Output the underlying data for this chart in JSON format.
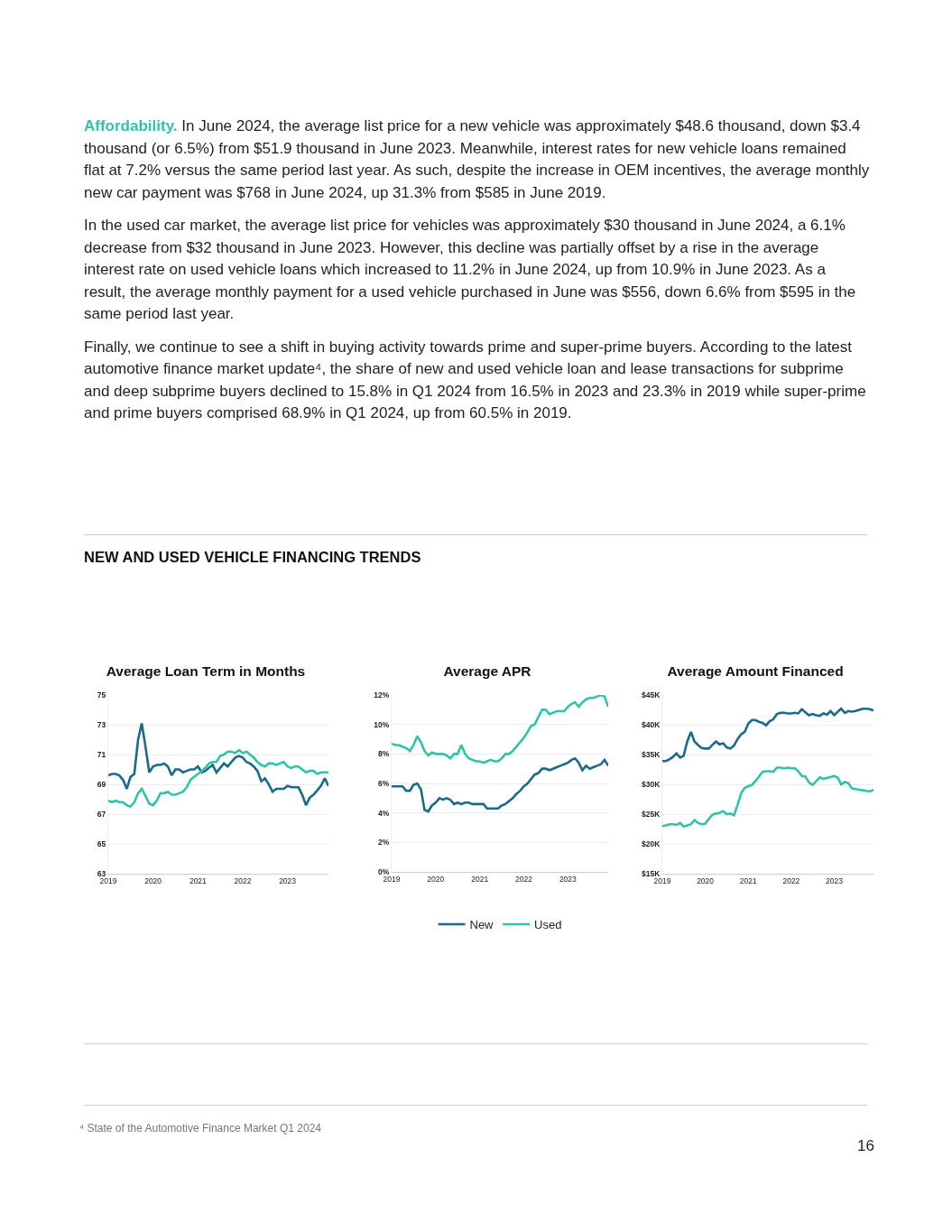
{
  "chart_data": [
    {
      "type": "other",
      "title": "NEW AND USED VEHICLE FINANCING TRENDS",
      "annotations": [
        "Affordability.",
        "In June 2024, the average list price for a new vehicle was approximately $48.6 thousand, down $3.4 thousand (or 6.5%) from $51.9 thousand in June 2023. Meanwhile, interest rates for new vehicle loans remained flat at 7.2% versus the same period last year. As such, despite the increase in OEM incentives, the average monthly new car payment was $768 in June 2024, up 31.3% from $585 in June 2019.",
        "In the used car market, the average list price for vehicles was approximately $30 thousand in June 2024, a 6.1% decrease from $32 thousand in June 2023. However, this decline was partially offset by a rise in the average interest rate on used vehicle loans which increased to 11.2% in June 2024, up from 10.9% in June 2023. As a result, the average monthly payment for a used vehicle purchased in June was $556, down 6.6% from $595 in the same period last year.",
        "Finally, we continue to see a shift in buying activity towards prime and super-prime buyers. According to the latest automotive finance market update⁴, the share of new and used vehicle loan and lease transactions for subprime and deep subprime buyers declined to 15.8% in Q1 2024 from 16.5% in 2023 and 23.3% in 2019 while super-prime and prime buyers comprised 68.9% in Q1 2024, up from 60.5% in 2019."
      ]
    },
    {
      "type": "line",
      "title": "Average Loan Term in Months",
      "grid": "y",
      "x": [
        "2019-01",
        "2019-02",
        "2019-03",
        "2019-04",
        "2019-05",
        "2019-06",
        "2019-07",
        "2019-08",
        "2019-09",
        "2019-10",
        "2019-11",
        "2019-12",
        "2020-01",
        "2020-02",
        "2020-03",
        "2020-04",
        "2020-05",
        "2020-06",
        "2020-07",
        "2020-08",
        "2020-09",
        "2020-10",
        "2020-11",
        "2020-12",
        "2021-01",
        "2021-02",
        "2021-03",
        "2021-04",
        "2021-05",
        "2021-06",
        "2021-07",
        "2021-08",
        "2021-09",
        "2021-10",
        "2021-11",
        "2021-12",
        "2022-01",
        "2022-02",
        "2022-03",
        "2022-04",
        "2022-05",
        "2022-06",
        "2022-07",
        "2022-08",
        "2022-09",
        "2022-10",
        "2022-11",
        "2022-12",
        "2023-01",
        "2023-02",
        "2023-03",
        "2023-04",
        "2023-05",
        "2023-06",
        "2023-07",
        "2023-08",
        "2023-09",
        "2023-10",
        "2023-11",
        "2023-12"
      ],
      "xlim": [
        "2019-01",
        "2023-12"
      ],
      "xticks": [
        "2019",
        "2020",
        "2021",
        "2022",
        "2023"
      ],
      "ylim": [
        63,
        75
      ],
      "yticks": [
        63,
        65,
        67,
        69,
        71,
        73,
        75
      ],
      "series": [
        {
          "color": "#1b6a8a",
          "values": [
            69.6,
            69.7,
            69.7,
            69.6,
            69.3,
            68.7,
            69.5,
            69.7,
            72.0,
            73.1,
            71.5,
            69.8,
            70.2,
            70.3,
            70.3,
            70.4,
            70.2,
            69.6,
            70.0,
            70.0,
            69.8,
            69.9,
            70.0,
            70.0,
            70.2,
            69.8,
            69.9,
            70.1,
            70.3,
            69.8,
            70.1,
            70.4,
            70.2,
            70.5,
            70.8,
            70.9,
            70.8,
            70.5,
            70.4,
            70.2,
            69.9,
            69.2,
            69.4,
            69.0,
            68.5,
            68.7,
            68.7,
            68.7,
            68.9,
            68.8,
            68.8,
            68.8,
            68.3,
            67.6,
            68.1,
            68.3,
            68.6,
            68.9,
            69.4,
            68.9
          ]
        },
        {
          "color": "#2ec4a6",
          "values": [
            67.9,
            67.8,
            67.9,
            67.8,
            67.8,
            67.6,
            67.5,
            67.8,
            68.4,
            68.7,
            68.2,
            67.7,
            67.6,
            67.9,
            68.4,
            68.4,
            68.5,
            68.3,
            68.3,
            68.4,
            68.5,
            68.8,
            69.3,
            69.5,
            69.7,
            69.9,
            70.1,
            70.4,
            70.5,
            70.5,
            70.9,
            71.0,
            71.2,
            71.2,
            71.1,
            71.3,
            71.1,
            71.2,
            71.0,
            70.8,
            70.5,
            70.3,
            70.2,
            70.4,
            70.4,
            70.3,
            70.4,
            70.5,
            70.2,
            70.1,
            70.2,
            70.2,
            70.0,
            69.8,
            69.9,
            69.9,
            69.7,
            69.8,
            69.8,
            69.8
          ]
        }
      ]
    },
    {
      "type": "line",
      "title": "Average APR",
      "grid": "y",
      "legend": "bottom",
      "x": [
        "2019-01",
        "2019-02",
        "2019-03",
        "2019-04",
        "2019-05",
        "2019-06",
        "2019-07",
        "2019-08",
        "2019-09",
        "2019-10",
        "2019-11",
        "2019-12",
        "2020-01",
        "2020-02",
        "2020-03",
        "2020-04",
        "2020-05",
        "2020-06",
        "2020-07",
        "2020-08",
        "2020-09",
        "2020-10",
        "2020-11",
        "2020-12",
        "2021-01",
        "2021-02",
        "2021-03",
        "2021-04",
        "2021-05",
        "2021-06",
        "2021-07",
        "2021-08",
        "2021-09",
        "2021-10",
        "2021-11",
        "2021-12",
        "2022-01",
        "2022-02",
        "2022-03",
        "2022-04",
        "2022-05",
        "2022-06",
        "2022-07",
        "2022-08",
        "2022-09",
        "2022-10",
        "2022-11",
        "2022-12",
        "2023-01",
        "2023-02",
        "2023-03",
        "2023-04",
        "2023-05",
        "2023-06",
        "2023-07",
        "2023-08",
        "2023-09",
        "2023-10",
        "2023-11",
        "2023-12"
      ],
      "xlim": [
        "2019-01",
        "2023-12"
      ],
      "xticks": [
        "2019",
        "2020",
        "2021",
        "2022",
        "2023"
      ],
      "ylim": [
        0,
        12
      ],
      "yticks": [
        {
          "value": 0,
          "label": "0%"
        },
        {
          "value": 2,
          "label": "2%"
        },
        {
          "value": 4,
          "label": "4%"
        },
        {
          "value": 6,
          "label": "6%"
        },
        {
          "value": 8,
          "label": "8%"
        },
        {
          "value": 10,
          "label": "10%"
        },
        {
          "value": 12,
          "label": "12%"
        }
      ],
      "series": [
        {
          "name": "New",
          "color": "#1b6a8a",
          "values": [
            5.8,
            5.8,
            5.8,
            5.8,
            5.5,
            5.5,
            5.9,
            6.0,
            5.6,
            4.2,
            4.1,
            4.5,
            4.7,
            5.0,
            4.9,
            5.0,
            4.9,
            4.6,
            4.7,
            4.6,
            4.7,
            4.7,
            4.6,
            4.6,
            4.6,
            4.6,
            4.3,
            4.3,
            4.3,
            4.3,
            4.5,
            4.6,
            4.8,
            5.0,
            5.3,
            5.5,
            5.8,
            6.0,
            6.3,
            6.6,
            6.7,
            7.0,
            7.0,
            6.9,
            7.0,
            7.1,
            7.2,
            7.3,
            7.4,
            7.6,
            7.7,
            7.4,
            6.9,
            7.2,
            7.0,
            7.1,
            7.2,
            7.3,
            7.6,
            7.2
          ]
        },
        {
          "name": "Used",
          "color": "#2ec4a6",
          "values": [
            8.7,
            8.6,
            8.6,
            8.5,
            8.4,
            8.2,
            8.6,
            9.2,
            8.8,
            8.2,
            7.9,
            8.1,
            8.0,
            8.0,
            8.0,
            7.9,
            7.7,
            8.0,
            8.0,
            8.6,
            8.0,
            7.7,
            7.6,
            7.5,
            7.5,
            7.4,
            7.5,
            7.6,
            7.5,
            7.5,
            7.7,
            8.0,
            8.0,
            8.2,
            8.5,
            8.8,
            9.1,
            9.5,
            9.9,
            10.0,
            10.5,
            11.0,
            11.0,
            10.7,
            10.8,
            10.9,
            10.9,
            10.9,
            11.2,
            11.4,
            11.5,
            11.2,
            11.5,
            11.7,
            11.8,
            11.8,
            11.9,
            12.0,
            11.9,
            11.2
          ]
        }
      ]
    },
    {
      "type": "line",
      "title": "Average Amount Financed",
      "grid": "y",
      "x": [
        "2019-01",
        "2019-02",
        "2019-03",
        "2019-04",
        "2019-05",
        "2019-06",
        "2019-07",
        "2019-08",
        "2019-09",
        "2019-10",
        "2019-11",
        "2019-12",
        "2020-01",
        "2020-02",
        "2020-03",
        "2020-04",
        "2020-05",
        "2020-06",
        "2020-07",
        "2020-08",
        "2020-09",
        "2020-10",
        "2020-11",
        "2020-12",
        "2021-01",
        "2021-02",
        "2021-03",
        "2021-04",
        "2021-05",
        "2021-06",
        "2021-07",
        "2021-08",
        "2021-09",
        "2021-10",
        "2021-11",
        "2021-12",
        "2022-01",
        "2022-02",
        "2022-03",
        "2022-04",
        "2022-05",
        "2022-06",
        "2022-07",
        "2022-08",
        "2022-09",
        "2022-10",
        "2022-11",
        "2022-12",
        "2023-01",
        "2023-02",
        "2023-03",
        "2023-04",
        "2023-05",
        "2023-06",
        "2023-07",
        "2023-08",
        "2023-09",
        "2023-10",
        "2023-11",
        "2023-12"
      ],
      "xlim": [
        "2019-01",
        "2023-12"
      ],
      "xticks": [
        "2019",
        "2020",
        "2021",
        "2022",
        "2023"
      ],
      "ylim": [
        15000,
        45000
      ],
      "yticks": [
        {
          "value": 15000,
          "label": "$15K"
        },
        {
          "value": 20000,
          "label": "$20K"
        },
        {
          "value": 25000,
          "label": "$25K"
        },
        {
          "value": 30000,
          "label": "$30K"
        },
        {
          "value": 35000,
          "label": "$35K"
        },
        {
          "value": 40000,
          "label": "$40K"
        },
        {
          "value": 45000,
          "label": "$45K"
        }
      ],
      "series": [
        {
          "color": "#1b6a8a",
          "values": [
            33900,
            33900,
            34200,
            34600,
            35200,
            34500,
            34800,
            37200,
            38800,
            37200,
            36600,
            36100,
            36000,
            36000,
            36600,
            37200,
            36700,
            36900,
            36200,
            36000,
            36500,
            37600,
            38400,
            38800,
            40200,
            40800,
            40800,
            40500,
            40300,
            39900,
            40600,
            40900,
            41800,
            42000,
            42000,
            41900,
            41900,
            42000,
            41900,
            42600,
            42100,
            41600,
            41800,
            41600,
            41500,
            41900,
            41700,
            42300,
            41600,
            42200,
            42700,
            42000,
            42300,
            42200,
            42300,
            42500,
            42700,
            42700,
            42600,
            42400
          ]
        },
        {
          "color": "#2ec4a6",
          "values": [
            23000,
            23100,
            23300,
            23300,
            23200,
            23500,
            22900,
            23100,
            23300,
            24000,
            23500,
            23300,
            23400,
            24200,
            24900,
            25100,
            25200,
            25500,
            25000,
            25100,
            24800,
            26500,
            28500,
            29400,
            29700,
            29900,
            30500,
            31300,
            32100,
            32200,
            32200,
            32100,
            32800,
            32800,
            32700,
            32800,
            32700,
            32700,
            32200,
            31400,
            31300,
            30300,
            29900,
            30500,
            31200,
            30900,
            31100,
            31200,
            31400,
            31100,
            30000,
            30400,
            30200,
            29300,
            29200,
            29100,
            29000,
            28900,
            28800,
            29100
          ]
        }
      ]
    },
    {
      "type": "other",
      "annotations": [
        "⁴ State of the Automotive Finance Market Q1 2024",
        "16"
      ]
    }
  ]
}
